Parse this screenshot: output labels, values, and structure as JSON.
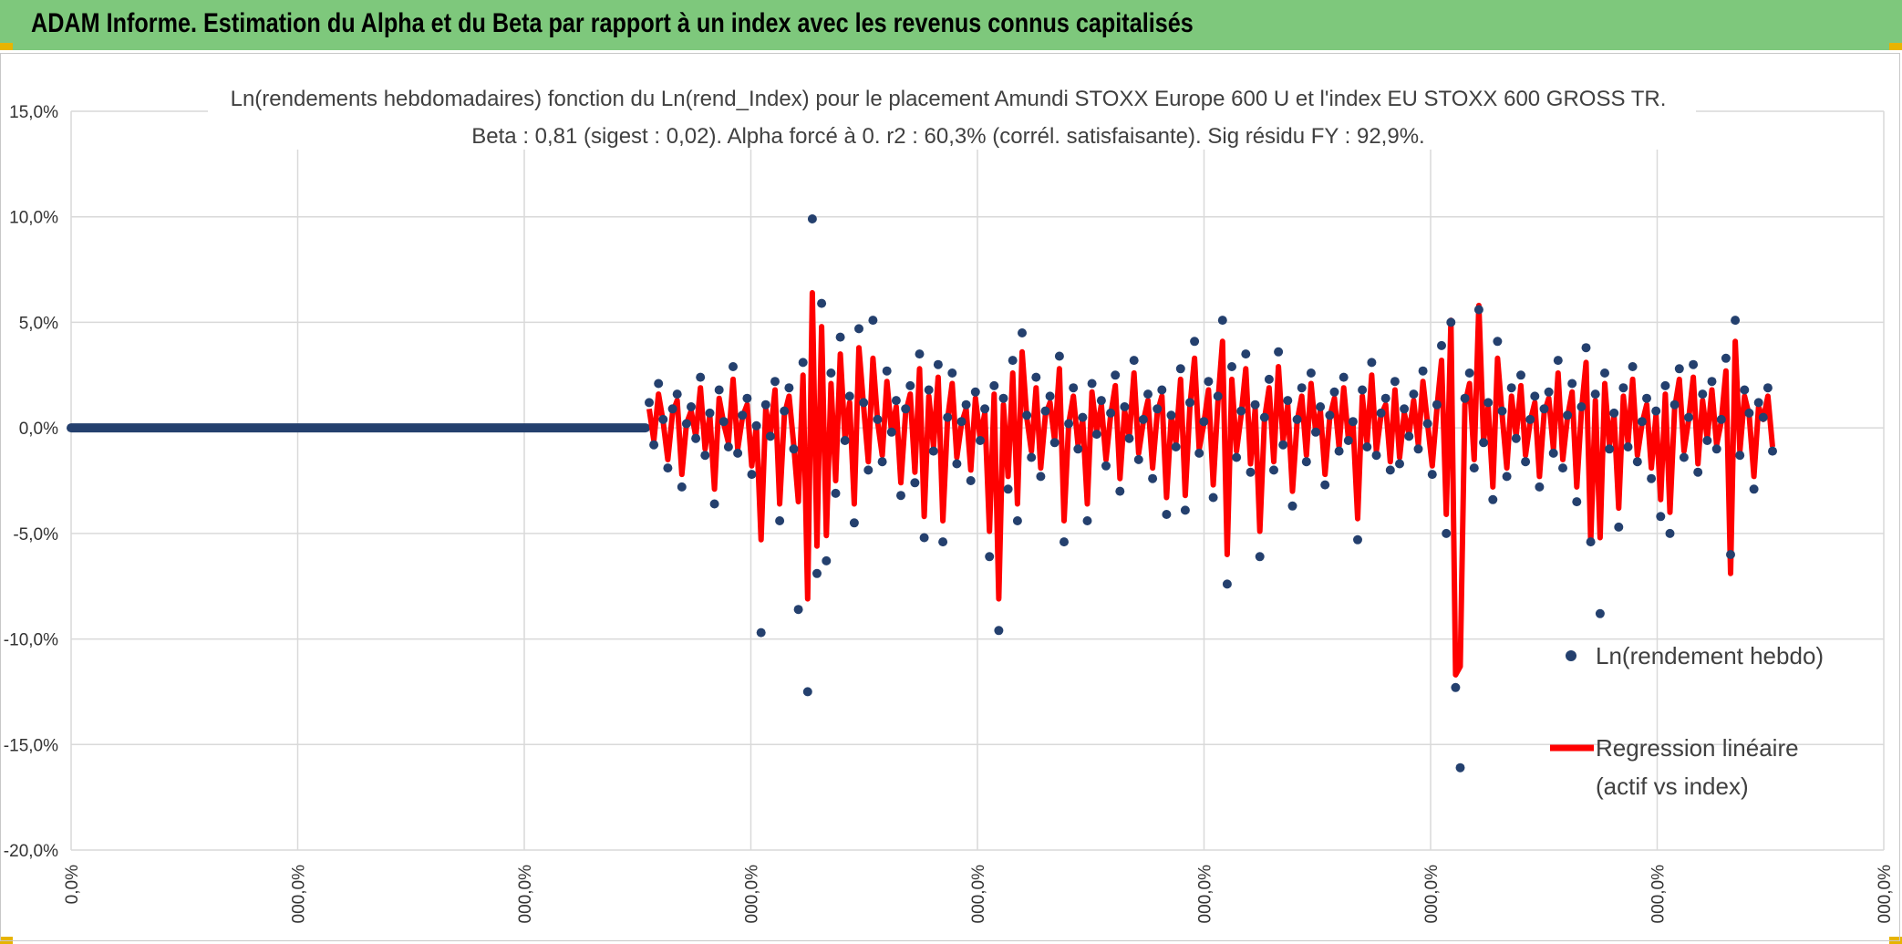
{
  "banner": {
    "title": "ADAM Informe. Estimation du Alpha et du Beta par rapport à un index avec les revenus connus capitalisés",
    "color": "#7ec87c"
  },
  "chart_data": {
    "type": "scatter",
    "title": "Ln(rendements hebdomadaires) fonction du Ln(rend_Index) pour le placement Amundi STOXX Europe 600 U et l'index EU STOXX 600 GROSS TR.",
    "subtitle": "Beta : 0,81 (sigest : 0,02). Alpha forcé à 0. r2 : 60,3% (corrél. satisfaisante). Sig résidu FY : 92,9%.",
    "xlabel": "",
    "ylabel": "",
    "ylim": [
      -20,
      15
    ],
    "y_ticks": [
      "15,0%",
      "10,0%",
      "5,0%",
      "0,0%",
      "-5,0%",
      "-10,0%",
      "-15,0%",
      "-20,0%"
    ],
    "x_ticks": [
      "0,0%",
      "000,0%",
      "000,0%",
      "000,0%",
      "000,0%",
      "000,0%",
      "000,0%",
      "000,0%",
      "000,0%"
    ],
    "grid": true,
    "legend_position": "bottom-right",
    "series": [
      {
        "name": "Ln(rendement hebdo)",
        "kind": "points",
        "color": "#24406e",
        "values": [
          1.2,
          -0.8,
          2.1,
          0.4,
          -1.9,
          0.9,
          1.6,
          -2.8,
          0.2,
          1.0,
          -0.5,
          2.4,
          -1.3,
          0.7,
          -3.6,
          1.8,
          0.3,
          -0.9,
          2.9,
          -1.2,
          0.6,
          1.4,
          -2.2,
          0.1,
          -9.7,
          1.1,
          -0.4,
          2.2,
          -4.4,
          0.8,
          1.9,
          -1.0,
          -8.6,
          3.1,
          -12.5,
          9.9,
          -6.9,
          5.9,
          -6.3,
          2.6,
          -3.1,
          4.3,
          -0.6,
          1.5,
          -4.5,
          4.7,
          1.2,
          -2.0,
          5.1,
          0.4,
          -1.6,
          2.7,
          -0.2,
          1.3,
          -3.2,
          0.9,
          2.0,
          -2.6,
          3.5,
          -5.2,
          1.8,
          -1.1,
          3.0,
          -5.4,
          0.5,
          2.6,
          -1.7,
          0.3,
          1.1,
          -2.5,
          1.7,
          -0.6,
          0.9,
          -6.1,
          2.0,
          -9.6,
          1.4,
          -2.9,
          3.2,
          -4.4,
          4.5,
          0.6,
          -1.4,
          2.4,
          -2.3,
          0.8,
          1.5,
          -0.7,
          3.4,
          -5.4,
          0.2,
          1.9,
          -1.0,
          0.5,
          -4.4,
          2.1,
          -0.3,
          1.3,
          -1.8,
          0.7,
          2.5,
          -3.0,
          1.0,
          -0.5,
          3.2,
          -1.5,
          0.4,
          1.6,
          -2.4,
          0.9,
          1.8,
          -4.1,
          0.6,
          -0.9,
          2.8,
          -3.9,
          1.2,
          4.1,
          -1.2,
          0.3,
          2.2,
          -3.3,
          1.5,
          5.1,
          -7.4,
          2.9,
          -1.4,
          0.8,
          3.5,
          -2.1,
          1.1,
          -6.1,
          0.5,
          2.3,
          -2.0,
          3.6,
          -0.8,
          1.3,
          -3.7,
          0.4,
          1.9,
          -1.6,
          2.6,
          -0.2,
          1.0,
          -2.7,
          0.6,
          1.7,
          -1.1,
          2.4,
          -0.6,
          0.3,
          -5.3,
          1.8,
          -0.9,
          3.1,
          -1.3,
          0.7,
          1.4,
          -2.0,
          2.2,
          -1.7,
          0.9,
          -0.4,
          1.6,
          -1.0,
          2.7,
          0.2,
          -2.2,
          1.1,
          3.9,
          -5.0,
          5.0,
          -12.3,
          -16.1,
          1.4,
          2.6,
          -1.9,
          5.6,
          -0.7,
          1.2,
          -3.4,
          4.1,
          0.8,
          -2.3,
          1.9,
          -0.5,
          2.5,
          -1.6,
          0.4,
          1.5,
          -2.8,
          0.9,
          1.7,
          -1.2,
          3.2,
          -1.9,
          0.6,
          2.1,
          -3.5,
          1.0,
          3.8,
          -5.4,
          1.6,
          -8.8,
          2.6,
          -1.0,
          0.7,
          -4.7,
          1.9,
          -0.9,
          2.9,
          -1.6,
          0.3,
          1.4,
          -2.4,
          0.8,
          -4.2,
          2.0,
          -5.0,
          1.1,
          2.8,
          -1.4,
          0.5,
          3.0,
          -2.1,
          1.6,
          -0.6,
          2.2,
          -1.0,
          0.4,
          3.3,
          -6.0,
          5.1,
          -1.3,
          1.8,
          0.7,
          -2.9,
          1.2,
          0.5,
          1.9,
          -1.1
        ]
      },
      {
        "name": "Regression linéaire\n(actif vs index)",
        "kind": "line",
        "color": "#ff0000",
        "values": [
          0.9,
          -0.6,
          1.6,
          0.3,
          -1.5,
          0.7,
          1.3,
          -2.2,
          0.2,
          0.8,
          -0.4,
          1.9,
          -1.0,
          0.6,
          -2.9,
          1.4,
          0.2,
          -0.7,
          2.3,
          -1.0,
          0.5,
          1.1,
          -1.8,
          0.1,
          -5.3,
          0.9,
          -0.3,
          1.8,
          -3.6,
          0.6,
          1.5,
          -0.8,
          -3.5,
          2.5,
          -8.1,
          6.4,
          -5.6,
          4.8,
          -5.1,
          2.1,
          -2.5,
          3.5,
          -0.5,
          1.2,
          -3.6,
          3.8,
          1.0,
          -1.6,
          3.3,
          0.3,
          -1.3,
          2.2,
          -0.2,
          1.0,
          -2.6,
          0.7,
          1.6,
          -2.1,
          2.8,
          -4.2,
          1.5,
          -0.9,
          2.4,
          -4.4,
          0.4,
          2.1,
          -1.4,
          0.2,
          0.9,
          -2.0,
          1.4,
          -0.5,
          0.7,
          -4.9,
          1.6,
          -8.1,
          1.1,
          -2.3,
          2.6,
          -3.6,
          3.6,
          0.5,
          -1.1,
          1.9,
          -1.9,
          0.6,
          1.2,
          -0.6,
          2.8,
          -4.4,
          0.2,
          1.5,
          -0.8,
          0.4,
          -3.6,
          1.7,
          -0.2,
          1.1,
          -1.5,
          0.6,
          2.0,
          -2.4,
          0.8,
          -0.4,
          2.6,
          -1.2,
          0.3,
          1.3,
          -1.9,
          0.7,
          1.5,
          -3.3,
          0.5,
          -0.7,
          2.3,
          -3.2,
          1.0,
          3.3,
          -1.0,
          0.2,
          1.8,
          -2.7,
          1.2,
          4.1,
          -6.0,
          2.3,
          -1.1,
          0.6,
          2.8,
          -1.7,
          0.9,
          -4.9,
          0.4,
          1.9,
          -1.6,
          2.9,
          -0.6,
          1.1,
          -3.0,
          0.3,
          1.5,
          -1.3,
          2.1,
          -0.2,
          0.8,
          -2.2,
          0.5,
          1.4,
          -0.9,
          1.9,
          -0.5,
          0.2,
          -4.3,
          1.5,
          -0.7,
          2.5,
          -1.1,
          0.6,
          1.1,
          -1.6,
          1.8,
          -1.4,
          0.7,
          -0.3,
          1.3,
          -0.8,
          2.2,
          0.2,
          -1.8,
          0.9,
          3.2,
          -4.1,
          5.1,
          -11.7,
          -11.3,
          1.1,
          2.1,
          -1.5,
          5.8,
          -0.6,
          1.0,
          -2.8,
          3.3,
          0.6,
          -1.9,
          1.5,
          -0.4,
          2.0,
          -1.3,
          0.3,
          1.2,
          -2.3,
          0.7,
          1.4,
          -1.0,
          2.6,
          -1.5,
          0.5,
          1.7,
          -2.8,
          0.8,
          3.1,
          -5.4,
          1.3,
          -5.2,
          2.1,
          -0.8,
          0.6,
          -3.8,
          1.5,
          -0.7,
          2.3,
          -1.3,
          0.2,
          1.1,
          -1.9,
          0.6,
          -3.4,
          1.6,
          -4.0,
          0.9,
          2.3,
          -1.1,
          0.4,
          2.4,
          -1.7,
          1.3,
          -0.5,
          1.8,
          -0.8,
          0.3,
          2.7,
          -6.9,
          4.1,
          -1.1,
          1.5,
          0.6,
          -2.3,
          1.0,
          0.4,
          1.5,
          -0.9
        ]
      }
    ]
  }
}
